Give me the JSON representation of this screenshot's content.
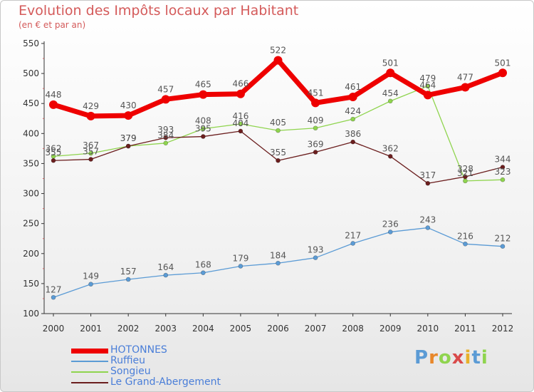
{
  "chart_data": {
    "type": "line",
    "title": "Evolution des Impôts locaux par Habitant",
    "subtitle": "(en € et par an)",
    "categories": [
      "2000",
      "2001",
      "2002",
      "2003",
      "2004",
      "2005",
      "2006",
      "2007",
      "2008",
      "2009",
      "2010",
      "2011",
      "2012"
    ],
    "ylim": [
      100,
      550
    ],
    "yticks": [
      100,
      150,
      200,
      250,
      300,
      350,
      400,
      450,
      500,
      550
    ],
    "grid": false,
    "legend_position": "bottom-left",
    "series": [
      {
        "name": "HOTONNES",
        "color": "#ee0000",
        "values": [
          448,
          429,
          430,
          457,
          465,
          466,
          522,
          451,
          461,
          501,
          464,
          477,
          501
        ]
      },
      {
        "name": "Ruffieu",
        "color": "#5b9bd5",
        "values": [
          127,
          149,
          157,
          164,
          168,
          179,
          184,
          193,
          217,
          236,
          243,
          216,
          212
        ]
      },
      {
        "name": "Songieu",
        "color": "#8fd44e",
        "values": [
          362,
          367,
          379,
          384,
          408,
          416,
          405,
          409,
          424,
          454,
          479,
          321,
          323
        ]
      },
      {
        "name": "Le Grand-Abergement",
        "color": "#6b1e1e",
        "values": [
          355,
          357,
          379,
          393,
          395,
          404,
          355,
          369,
          386,
          362,
          317,
          328,
          344
        ]
      }
    ]
  },
  "logo": {
    "text": "Proxiti"
  }
}
